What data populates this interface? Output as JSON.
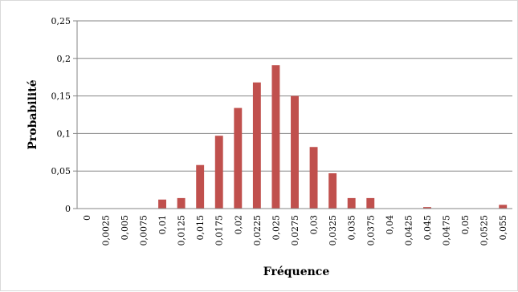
{
  "chart_data": {
    "type": "bar",
    "title": "",
    "xlabel": "Fréquence",
    "ylabel": "Probabilité",
    "ylim": [
      0,
      0.25
    ],
    "y_ticks": [
      0,
      0.05,
      0.1,
      0.15,
      0.2,
      0.25
    ],
    "y_tick_labels": [
      "0",
      "0,05",
      "0,1",
      "0,15",
      "0,2",
      "0,25"
    ],
    "grid": "horizontal",
    "legend": "none",
    "bar_color": "#c0504d",
    "categories": [
      "0",
      "0,0025",
      "0,005",
      "0,0075",
      "0,01",
      "0,0125",
      "0,015",
      "0,0175",
      "0,02",
      "0,0225",
      "0,025",
      "0,0275",
      "0,03",
      "0,0325",
      "0,035",
      "0,0375",
      "0,04",
      "0,0425",
      "0,045",
      "0,0475",
      "0,05",
      "0,0525",
      "0,055"
    ],
    "values": [
      0,
      0,
      0,
      0,
      0.012,
      0.014,
      0.058,
      0.097,
      0.134,
      0.168,
      0.191,
      0.15,
      0.082,
      0.047,
      0.014,
      0.014,
      0,
      0,
      0.002,
      0,
      0,
      0,
      0.005
    ]
  }
}
